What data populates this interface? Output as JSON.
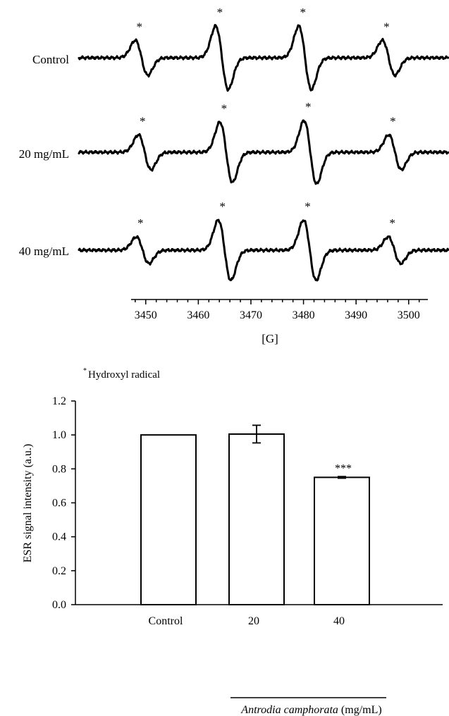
{
  "esr_panel": {
    "spectra": [
      {
        "label": "Control",
        "peak_positions_G": [
          3449.2,
          3464.5,
          3480.3,
          3496.2
        ],
        "peak_heights": [
          0.55,
          1.0,
          1.0,
          0.55
        ]
      },
      {
        "label": "20 mg/mL",
        "peak_positions_G": [
          3449.8,
          3465.3,
          3481.3,
          3497.4
        ],
        "peak_heights": [
          0.55,
          0.95,
          1.0,
          0.55
        ]
      },
      {
        "label": "40 mg/mL",
        "peak_positions_G": [
          3449.4,
          3465.0,
          3481.2,
          3497.3
        ],
        "peak_heights": [
          0.42,
          0.95,
          0.95,
          0.42
        ]
      }
    ],
    "peak_marker": "*",
    "xaxis_ticks": [
      "3450",
      "3460",
      "3470",
      "3480",
      "3490",
      "3500"
    ],
    "xaxis_range": [
      3444,
      3507
    ],
    "xaxis_unit": "[G]",
    "footnote_marker": "*",
    "footnote_text": "Hydroxyl radical"
  },
  "chart_data": {
    "type": "bar",
    "categories": [
      "Control",
      "20",
      "40"
    ],
    "values": [
      1.0,
      1.005,
      0.75
    ],
    "errors": [
      0,
      0.052,
      0.005
    ],
    "annotations": [
      "",
      "",
      "***"
    ],
    "ylabel": "ESR signal intensity (a.u.)",
    "xlabel_italic": "Antrodia camphorata",
    "xlabel_unit": "(mg/mL)",
    "ylim": [
      0,
      1.2
    ],
    "yticks": [
      "0.0",
      "0.2",
      "0.4",
      "0.6",
      "0.8",
      "1.0",
      "1.2"
    ]
  }
}
